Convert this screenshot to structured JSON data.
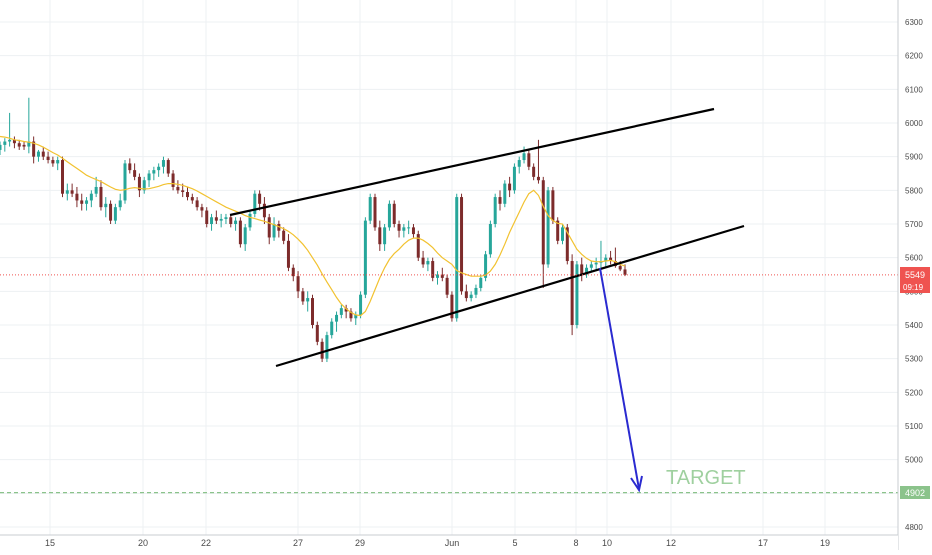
{
  "chart_data": {
    "type": "candlestick",
    "title": "",
    "xlabel": "",
    "ylabel": "",
    "ylim": [
      4780,
      6340
    ],
    "grid": true,
    "colors": {
      "up": "#26a69a",
      "down": "#7d2b2b",
      "ma": "#f2c230",
      "trendline": "#000000",
      "projection": "#2a2ad0",
      "price_line": "#ef5350",
      "target_line": "#8bc38b",
      "target_text": "#9fd09f",
      "axis_text": "#4a4a4a",
      "grid": "#edf0f3"
    },
    "x_ticks": [
      "15",
      "20",
      "22",
      "27",
      "29",
      "Jun",
      "5",
      "8",
      "10",
      "12",
      "17",
      "19"
    ],
    "y_ticks": [
      "6300",
      "6200",
      "6100",
      "6000",
      "5900",
      "5800",
      "5700",
      "5600",
      "5500",
      "5400",
      "5300",
      "5200",
      "5100",
      "5000",
      "4900",
      "4800"
    ],
    "last_price": "5549",
    "countdown": "09:19",
    "target_price": "4902",
    "target_label": "TARGET",
    "series": [
      {
        "type": "candlestick",
        "values": [
          [
            5920,
            5945,
            5905,
            5935
          ],
          [
            5935,
            5955,
            5915,
            5945
          ],
          [
            5945,
            6030,
            5930,
            5950
          ],
          [
            5950,
            5960,
            5925,
            5940
          ],
          [
            5940,
            5950,
            5920,
            5930
          ],
          [
            5935,
            5945,
            5920,
            5930
          ],
          [
            5930,
            6075,
            5910,
            5945
          ],
          [
            5945,
            5960,
            5880,
            5900
          ],
          [
            5900,
            5920,
            5885,
            5915
          ],
          [
            5915,
            5930,
            5890,
            5900
          ],
          [
            5900,
            5915,
            5880,
            5890
          ],
          [
            5890,
            5900,
            5870,
            5880
          ],
          [
            5880,
            5900,
            5860,
            5890
          ],
          [
            5890,
            5900,
            5780,
            5790
          ],
          [
            5790,
            5820,
            5770,
            5800
          ],
          [
            5800,
            5820,
            5780,
            5790
          ],
          [
            5790,
            5810,
            5750,
            5770
          ],
          [
            5770,
            5790,
            5740,
            5760
          ],
          [
            5760,
            5780,
            5740,
            5770
          ],
          [
            5770,
            5800,
            5750,
            5790
          ],
          [
            5790,
            5840,
            5780,
            5810
          ],
          [
            5810,
            5830,
            5740,
            5750
          ],
          [
            5750,
            5780,
            5720,
            5760
          ],
          [
            5760,
            5770,
            5700,
            5710
          ],
          [
            5710,
            5760,
            5700,
            5750
          ],
          [
            5750,
            5790,
            5740,
            5770
          ],
          [
            5770,
            5890,
            5760,
            5880
          ],
          [
            5880,
            5895,
            5850,
            5860
          ],
          [
            5860,
            5880,
            5830,
            5840
          ],
          [
            5840,
            5850,
            5780,
            5800
          ],
          [
            5800,
            5840,
            5790,
            5830
          ],
          [
            5830,
            5860,
            5810,
            5850
          ],
          [
            5850,
            5870,
            5830,
            5860
          ],
          [
            5860,
            5880,
            5840,
            5870
          ],
          [
            5870,
            5900,
            5850,
            5890
          ],
          [
            5890,
            5895,
            5840,
            5850
          ],
          [
            5850,
            5860,
            5800,
            5810
          ],
          [
            5810,
            5830,
            5790,
            5800
          ],
          [
            5800,
            5820,
            5780,
            5795
          ],
          [
            5795,
            5810,
            5770,
            5780
          ],
          [
            5780,
            5790,
            5760,
            5770
          ],
          [
            5770,
            5780,
            5740,
            5750
          ],
          [
            5750,
            5760,
            5720,
            5740
          ],
          [
            5740,
            5750,
            5690,
            5700
          ],
          [
            5700,
            5730,
            5680,
            5720
          ],
          [
            5720,
            5740,
            5700,
            5710
          ],
          [
            5710,
            5730,
            5690,
            5715
          ],
          [
            5715,
            5730,
            5700,
            5720
          ],
          [
            5720,
            5730,
            5690,
            5700
          ],
          [
            5700,
            5720,
            5680,
            5710
          ],
          [
            5710,
            5720,
            5630,
            5640
          ],
          [
            5640,
            5700,
            5620,
            5690
          ],
          [
            5690,
            5740,
            5680,
            5730
          ],
          [
            5730,
            5800,
            5720,
            5790
          ],
          [
            5790,
            5800,
            5740,
            5760
          ],
          [
            5760,
            5780,
            5700,
            5720
          ],
          [
            5720,
            5730,
            5640,
            5660
          ],
          [
            5660,
            5720,
            5650,
            5700
          ],
          [
            5700,
            5710,
            5660,
            5680
          ],
          [
            5680,
            5690,
            5640,
            5650
          ],
          [
            5650,
            5670,
            5560,
            5570
          ],
          [
            5570,
            5580,
            5530,
            5545
          ],
          [
            5545,
            5560,
            5480,
            5500
          ],
          [
            5500,
            5510,
            5460,
            5470
          ],
          [
            5470,
            5500,
            5440,
            5480
          ],
          [
            5480,
            5490,
            5390,
            5400
          ],
          [
            5400,
            5410,
            5340,
            5350
          ],
          [
            5350,
            5360,
            5290,
            5300
          ],
          [
            5300,
            5380,
            5290,
            5370
          ],
          [
            5370,
            5420,
            5360,
            5410
          ],
          [
            5410,
            5440,
            5380,
            5430
          ],
          [
            5430,
            5460,
            5420,
            5450
          ],
          [
            5450,
            5460,
            5420,
            5440
          ],
          [
            5440,
            5450,
            5410,
            5420
          ],
          [
            5420,
            5440,
            5400,
            5430
          ],
          [
            5430,
            5500,
            5420,
            5490
          ],
          [
            5490,
            5720,
            5480,
            5710
          ],
          [
            5710,
            5790,
            5700,
            5780
          ],
          [
            5780,
            5790,
            5680,
            5690
          ],
          [
            5690,
            5710,
            5620,
            5640
          ],
          [
            5640,
            5700,
            5620,
            5690
          ],
          [
            5690,
            5770,
            5680,
            5760
          ],
          [
            5760,
            5770,
            5690,
            5700
          ],
          [
            5700,
            5710,
            5660,
            5680
          ],
          [
            5680,
            5700,
            5660,
            5690
          ],
          [
            5690,
            5710,
            5670,
            5690
          ],
          [
            5690,
            5700,
            5660,
            5670
          ],
          [
            5670,
            5680,
            5590,
            5600
          ],
          [
            5600,
            5620,
            5570,
            5580
          ],
          [
            5580,
            5600,
            5560,
            5590
          ],
          [
            5590,
            5600,
            5530,
            5540
          ],
          [
            5540,
            5560,
            5520,
            5550
          ],
          [
            5550,
            5570,
            5530,
            5540
          ],
          [
            5540,
            5550,
            5480,
            5490
          ],
          [
            5490,
            5500,
            5410,
            5420
          ],
          [
            5420,
            5790,
            5410,
            5780
          ],
          [
            5780,
            5790,
            5490,
            5500
          ],
          [
            5500,
            5520,
            5470,
            5480
          ],
          [
            5480,
            5500,
            5470,
            5490
          ],
          [
            5490,
            5520,
            5480,
            5510
          ],
          [
            5510,
            5550,
            5500,
            5540
          ],
          [
            5540,
            5620,
            5530,
            5610
          ],
          [
            5610,
            5710,
            5600,
            5700
          ],
          [
            5700,
            5790,
            5690,
            5780
          ],
          [
            5780,
            5800,
            5740,
            5760
          ],
          [
            5760,
            5830,
            5750,
            5820
          ],
          [
            5820,
            5840,
            5780,
            5800
          ],
          [
            5800,
            5880,
            5790,
            5870
          ],
          [
            5870,
            5900,
            5850,
            5890
          ],
          [
            5890,
            5930,
            5880,
            5910
          ],
          [
            5910,
            5920,
            5860,
            5870
          ],
          [
            5870,
            5880,
            5830,
            5840
          ],
          [
            5840,
            5950,
            5820,
            5830
          ],
          [
            5830,
            5840,
            5510,
            5580
          ],
          [
            5580,
            5810,
            5570,
            5800
          ],
          [
            5800,
            5810,
            5700,
            5710
          ],
          [
            5710,
            5720,
            5640,
            5650
          ],
          [
            5650,
            5700,
            5640,
            5690
          ],
          [
            5690,
            5700,
            5580,
            5590
          ],
          [
            5590,
            5610,
            5370,
            5400
          ],
          [
            5400,
            5590,
            5390,
            5580
          ],
          [
            5580,
            5600,
            5530,
            5550
          ],
          [
            5550,
            5580,
            5540,
            5570
          ],
          [
            5570,
            5590,
            5560,
            5580
          ],
          [
            5580,
            5600,
            5560,
            5585
          ],
          [
            5585,
            5650,
            5570,
            5590
          ],
          [
            5590,
            5610,
            5570,
            5600
          ],
          [
            5600,
            5620,
            5580,
            5590
          ],
          [
            5590,
            5630,
            5570,
            5575
          ],
          [
            5575,
            5590,
            5560,
            5565
          ],
          [
            5565,
            5580,
            5545,
            5549
          ]
        ]
      },
      {
        "type": "line",
        "values": [
          5960,
          5958,
          5955,
          5950,
          5948,
          5945,
          5943,
          5940,
          5935,
          5928,
          5920,
          5912,
          5905,
          5895,
          5885,
          5875,
          5865,
          5855,
          5845,
          5838,
          5832,
          5826,
          5818,
          5810,
          5803,
          5800,
          5802,
          5806,
          5808,
          5806,
          5804,
          5805,
          5808,
          5812,
          5817,
          5820,
          5820,
          5818,
          5815,
          5810,
          5805,
          5798,
          5790,
          5782,
          5774,
          5766,
          5758,
          5750,
          5744,
          5738,
          5732,
          5725,
          5720,
          5716,
          5712,
          5708,
          5703,
          5698,
          5692,
          5686,
          5678,
          5668,
          5655,
          5640,
          5622,
          5600,
          5578,
          5552,
          5528,
          5505,
          5482,
          5462,
          5448,
          5437,
          5430,
          5428,
          5440,
          5470,
          5505,
          5540,
          5570,
          5595,
          5612,
          5625,
          5640,
          5652,
          5658,
          5658,
          5652,
          5642,
          5630,
          5614,
          5600,
          5590,
          5580,
          5562,
          5555,
          5550,
          5545,
          5545,
          5545,
          5548,
          5560,
          5580,
          5608,
          5640,
          5675,
          5705,
          5735,
          5765,
          5790,
          5800,
          5785,
          5752,
          5725,
          5710,
          5702,
          5700,
          5675,
          5650,
          5625,
          5610,
          5598,
          5590,
          5588,
          5588,
          5590,
          5592,
          5588,
          5580,
          5575
        ]
      }
    ]
  }
}
